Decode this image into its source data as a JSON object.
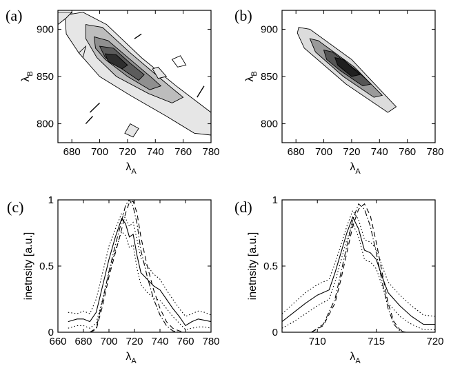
{
  "chart_data": [
    {
      "panel": "(a)",
      "type": "contour",
      "xlabel": "λ",
      "xlabel_sub": "A",
      "ylabel": "λ",
      "ylabel_sub": "B",
      "xlim": [
        670,
        780
      ],
      "ylim": [
        780,
        920
      ],
      "xticks": [
        680,
        700,
        720,
        740,
        760,
        780
      ],
      "yticks": [
        800,
        850,
        900
      ],
      "ridge": {
        "from": [
          690,
          905
        ],
        "to": [
          770,
          790
        ]
      },
      "peak": [
        710,
        868
      ],
      "levels": [
        {
          "fill": "#e6e6e6",
          "points": [
            [
              675,
              915
            ],
            [
              688,
              918
            ],
            [
              705,
              905
            ],
            [
              730,
              870
            ],
            [
              755,
              840
            ],
            [
              780,
              812
            ],
            [
              780,
              788
            ],
            [
              768,
              790
            ],
            [
              748,
              808
            ],
            [
              722,
              830
            ],
            [
              700,
              850
            ],
            [
              685,
              875
            ],
            [
              676,
              895
            ]
          ]
        },
        {
          "fill": "#bdbdbd",
          "points": [
            [
              690,
              905
            ],
            [
              702,
              902
            ],
            [
              722,
              875
            ],
            [
              746,
              845
            ],
            [
              760,
              828
            ],
            [
              752,
              822
            ],
            [
              735,
              832
            ],
            [
              712,
              850
            ],
            [
              698,
              870
            ],
            [
              690,
              890
            ]
          ]
        },
        {
          "fill": "#8f8f8f",
          "points": [
            [
              696,
              892
            ],
            [
              706,
              888
            ],
            [
              722,
              868
            ],
            [
              738,
              848
            ],
            [
              744,
              840
            ],
            [
              736,
              836
            ],
            [
              720,
              850
            ],
            [
              704,
              868
            ],
            [
              697,
              880
            ]
          ]
        },
        {
          "fill": "#5c5c5c",
          "points": [
            [
              700,
              882
            ],
            [
              710,
              880
            ],
            [
              722,
              864
            ],
            [
              732,
              852
            ],
            [
              728,
              846
            ],
            [
              716,
              858
            ],
            [
              704,
              870
            ]
          ]
        },
        {
          "fill": "#2e2e2e",
          "points": [
            [
              704,
              874
            ],
            [
              712,
              873
            ],
            [
              720,
              862
            ],
            [
              716,
              858
            ],
            [
              706,
              866
            ]
          ]
        }
      ],
      "islands": [
        {
          "fill": "#e6e6e6",
          "points": [
            [
              670,
              905
            ],
            [
              676,
              912
            ],
            [
              680,
              918
            ],
            [
              670,
              918
            ]
          ]
        },
        {
          "fill": "#e6e6e6",
          "points": [
            [
              738,
              858
            ],
            [
              742,
              860
            ],
            [
              748,
              850
            ],
            [
              742,
              848
            ]
          ]
        },
        {
          "fill": "#e6e6e6",
          "points": [
            [
              718,
              790
            ],
            [
              722,
              800
            ],
            [
              728,
              795
            ],
            [
              724,
              786
            ]
          ]
        },
        {
          "fill": "#ffffff",
          "points": [
            [
              752,
              868
            ],
            [
              758,
              872
            ],
            [
              762,
              862
            ],
            [
              756,
              860
            ]
          ]
        },
        {
          "fill": "#e6e6e6",
          "points": [
            [
              685,
              875
            ],
            [
              690,
              882
            ],
            [
              688,
              870
            ]
          ]
        }
      ],
      "segments": [
        {
          "from": [
            725,
            890
          ],
          "to": [
            730,
            895
          ]
        },
        {
          "from": [
            693,
            812
          ],
          "to": [
            700,
            822
          ]
        },
        {
          "from": [
            770,
            828
          ],
          "to": [
            775,
            840
          ]
        },
        {
          "from": [
            690,
            800
          ],
          "to": [
            695,
            808
          ]
        }
      ]
    },
    {
      "panel": "(b)",
      "type": "contour",
      "xlabel": "λ",
      "xlabel_sub": "A",
      "ylabel": "λ",
      "ylabel_sub": "B",
      "xlim": [
        670,
        780
      ],
      "ylim": [
        780,
        920
      ],
      "xticks": [
        680,
        700,
        720,
        740,
        760,
        780
      ],
      "yticks": [
        800,
        850,
        900
      ],
      "peak": [
        718,
        856
      ],
      "levels": [
        {
          "fill": "#dcdcdc",
          "points": [
            [
              682,
              902
            ],
            [
              690,
              900
            ],
            [
              720,
              868
            ],
            [
              752,
              818
            ],
            [
              746,
              812
            ],
            [
              716,
              842
            ],
            [
              686,
              880
            ],
            [
              681,
              896
            ]
          ]
        },
        {
          "fill": "#9a9a9a",
          "points": [
            [
              690,
              890
            ],
            [
              696,
              888
            ],
            [
              722,
              860
            ],
            [
              742,
              830
            ],
            [
              736,
              828
            ],
            [
              714,
              850
            ],
            [
              694,
              876
            ]
          ]
        },
        {
          "fill": "#555555",
          "points": [
            [
              700,
              878
            ],
            [
              706,
              876
            ],
            [
              724,
              856
            ],
            [
              734,
              842
            ],
            [
              728,
              840
            ],
            [
              712,
              856
            ],
            [
              702,
              868
            ]
          ]
        },
        {
          "fill": "#1f1f1f",
          "points": [
            [
              708,
              870
            ],
            [
              714,
              868
            ],
            [
              726,
              852
            ],
            [
              720,
              850
            ],
            [
              710,
              862
            ]
          ]
        }
      ]
    },
    {
      "panel": "(c)",
      "type": "line",
      "xlabel": "λ",
      "xlabel_sub": "A",
      "ylabel": "inetnsity [a.u.]",
      "xlim": [
        660,
        780
      ],
      "ylim": [
        0,
        1
      ],
      "xticks": [
        660,
        680,
        700,
        720,
        740,
        760,
        780
      ],
      "yticks": [
        0,
        0.5,
        1
      ],
      "series": [
        {
          "style": "solid",
          "x": [
            668,
            675,
            680,
            685,
            690,
            695,
            700,
            705,
            710,
            713,
            716,
            719,
            722,
            725,
            730,
            735,
            740,
            745,
            750,
            755,
            760,
            765,
            770,
            775,
            780
          ],
          "y": [
            0.08,
            0.1,
            0.1,
            0.08,
            0.15,
            0.35,
            0.55,
            0.72,
            0.86,
            0.82,
            0.72,
            0.74,
            0.58,
            0.45,
            0.4,
            0.35,
            0.32,
            0.25,
            0.18,
            0.12,
            0.05,
            0.08,
            0.1,
            0.09,
            0.08
          ]
        },
        {
          "style": "dotted",
          "x": [
            668,
            675,
            680,
            685,
            690,
            695,
            700,
            705,
            710,
            713,
            716,
            719,
            722,
            725,
            730,
            735,
            740,
            745,
            750,
            755,
            760,
            765,
            770,
            775,
            780
          ],
          "y": [
            0.15,
            0.14,
            0.16,
            0.14,
            0.25,
            0.45,
            0.65,
            0.78,
            0.9,
            0.86,
            0.8,
            0.83,
            0.7,
            0.56,
            0.5,
            0.44,
            0.4,
            0.32,
            0.25,
            0.18,
            0.12,
            0.14,
            0.16,
            0.15,
            0.13
          ]
        },
        {
          "style": "dotted",
          "x": [
            668,
            675,
            680,
            685,
            690,
            695,
            700,
            705,
            710,
            713,
            716,
            719,
            722,
            725,
            730,
            735,
            740,
            745,
            750,
            755,
            760,
            765,
            770,
            775,
            780
          ],
          "y": [
            0.03,
            0.05,
            0.05,
            0.03,
            0.07,
            0.25,
            0.45,
            0.62,
            0.76,
            0.73,
            0.64,
            0.66,
            0.48,
            0.36,
            0.3,
            0.26,
            0.24,
            0.18,
            0.12,
            0.07,
            0.02,
            0.03,
            0.04,
            0.04,
            0.03
          ]
        },
        {
          "style": "dashed",
          "x": [
            685,
            690,
            695,
            700,
            705,
            710,
            713,
            716,
            719,
            722,
            725,
            730,
            735,
            740,
            745,
            750,
            755,
            760
          ],
          "y": [
            0.0,
            0.02,
            0.2,
            0.42,
            0.6,
            0.78,
            0.9,
            0.98,
            0.99,
            0.9,
            0.72,
            0.5,
            0.32,
            0.18,
            0.08,
            0.03,
            0.01,
            0.0
          ]
        },
        {
          "style": "dashdot",
          "x": [
            685,
            690,
            695,
            700,
            705,
            710,
            713,
            716,
            719,
            722,
            725,
            730,
            735,
            740,
            745,
            750,
            755
          ],
          "y": [
            0.0,
            0.03,
            0.24,
            0.46,
            0.66,
            0.84,
            0.96,
            1.0,
            0.95,
            0.82,
            0.62,
            0.42,
            0.25,
            0.13,
            0.05,
            0.01,
            0.0
          ]
        }
      ]
    },
    {
      "panel": "(d)",
      "type": "line",
      "xlabel": "λ",
      "xlabel_sub": "A",
      "ylabel": "inetnsity [a.u.]",
      "xlim": [
        707,
        720
      ],
      "ylim": [
        0,
        1
      ],
      "xticks": [
        710,
        715,
        720
      ],
      "yticks": [
        0,
        0.5,
        1
      ],
      "series": [
        {
          "style": "solid",
          "x": [
            707,
            708,
            709,
            710,
            711,
            711.5,
            712,
            712.5,
            713,
            713.5,
            714,
            714.5,
            715,
            715.5,
            716,
            717,
            718,
            719,
            720
          ],
          "y": [
            0.08,
            0.15,
            0.22,
            0.28,
            0.32,
            0.45,
            0.6,
            0.75,
            0.87,
            0.78,
            0.62,
            0.6,
            0.55,
            0.42,
            0.3,
            0.2,
            0.12,
            0.06,
            0.06
          ]
        },
        {
          "style": "dotted",
          "x": [
            707,
            708,
            709,
            710,
            711,
            711.5,
            712,
            712.5,
            713,
            713.5,
            714,
            714.5,
            715,
            715.5,
            716,
            717,
            718,
            719,
            720
          ],
          "y": [
            0.14,
            0.22,
            0.3,
            0.36,
            0.4,
            0.52,
            0.66,
            0.8,
            0.92,
            0.85,
            0.7,
            0.68,
            0.63,
            0.5,
            0.38,
            0.28,
            0.2,
            0.13,
            0.12
          ]
        },
        {
          "style": "dotted",
          "x": [
            707,
            708,
            709,
            710,
            711,
            711.5,
            712,
            712.5,
            713,
            713.5,
            714,
            714.5,
            715,
            715.5,
            716,
            717,
            718,
            719,
            720
          ],
          "y": [
            0.03,
            0.08,
            0.14,
            0.2,
            0.25,
            0.38,
            0.54,
            0.7,
            0.82,
            0.72,
            0.55,
            0.53,
            0.48,
            0.35,
            0.22,
            0.12,
            0.06,
            0.02,
            0.02
          ]
        },
        {
          "style": "dashed",
          "x": [
            709.5,
            710.5,
            711.5,
            712,
            712.5,
            713,
            713.5,
            714,
            714.5,
            715,
            715.5,
            716,
            716.5,
            717,
            717.5
          ],
          "y": [
            0.0,
            0.05,
            0.22,
            0.4,
            0.6,
            0.8,
            0.93,
            0.97,
            0.88,
            0.68,
            0.45,
            0.22,
            0.08,
            0.02,
            0.0
          ]
        },
        {
          "style": "dashdot",
          "x": [
            709.5,
            710.5,
            711.5,
            712,
            712.5,
            713,
            713.5,
            714,
            714.5,
            715,
            715.5,
            716,
            716.5,
            717,
            717.5
          ],
          "y": [
            0.0,
            0.06,
            0.25,
            0.45,
            0.65,
            0.85,
            0.97,
            0.93,
            0.8,
            0.6,
            0.38,
            0.18,
            0.06,
            0.01,
            0.0
          ]
        }
      ]
    }
  ]
}
